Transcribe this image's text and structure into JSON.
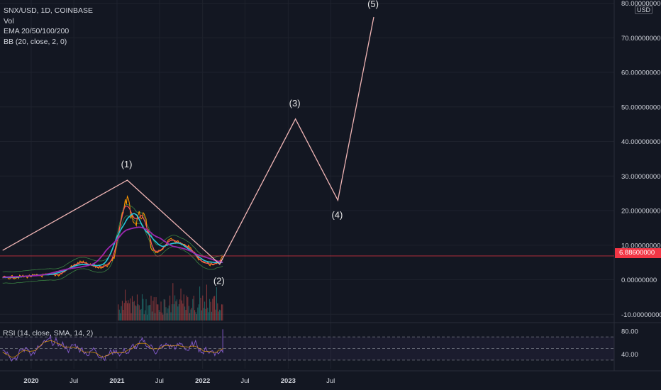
{
  "legend": {
    "symbol": "SNX/USD, 1D, COINBASE",
    "vol": "Vol",
    "ema": "EMA 20/50/100/200",
    "bb": "BB (20, close, 2, 0)"
  },
  "rsi_legend": "RSI (14, close, SMA, 14, 2)",
  "currency_badge": "USD",
  "current_price": "6.88600000",
  "colors": {
    "background": "#131722",
    "wave_line": "#f0b5b5",
    "price_line": "#f23645",
    "ema20": "#f7525f",
    "ema50": "#ff9800",
    "ema100": "#26c6da",
    "ema200": "#9c27b0",
    "bb": "#4caf50",
    "rsi": "#7e57c2",
    "volume": "#26a69a"
  },
  "chart_data": {
    "type": "line",
    "price_axis": {
      "ticks": [
        {
          "value": 80,
          "label": "80.00000000"
        },
        {
          "value": 70,
          "label": "70.00000000"
        },
        {
          "value": 60,
          "label": "60.00000000"
        },
        {
          "value": 50,
          "label": "50.00000000"
        },
        {
          "value": 40,
          "label": "40.00000000"
        },
        {
          "value": 30,
          "label": "30.00000000"
        },
        {
          "value": 20,
          "label": "20.00000000"
        },
        {
          "value": 10,
          "label": "10.00000000"
        },
        {
          "value": 0,
          "label": "0.00000000"
        },
        {
          "value": -10,
          "label": "-10.00000000"
        }
      ],
      "range": [
        -12,
        81
      ]
    },
    "time_axis": {
      "ticks": [
        {
          "date": "2020-01-01",
          "label": "2020"
        },
        {
          "date": "2020-07-01",
          "label": "Jul"
        },
        {
          "date": "2021-01-01",
          "label": "2021"
        },
        {
          "date": "2021-07-01",
          "label": "Jul"
        },
        {
          "date": "2022-01-01",
          "label": "2022"
        },
        {
          "date": "2022-07-01",
          "label": "Jul"
        },
        {
          "date": "2023-01-01",
          "label": "2023"
        },
        {
          "date": "2023-07-01",
          "label": "Jul"
        }
      ]
    },
    "current_price": 6.886,
    "elliott_waves": [
      {
        "label": "",
        "date": "2019-09-01",
        "price": 8.5
      },
      {
        "label": "(1)",
        "date": "2021-02-14",
        "price": 28.8
      },
      {
        "label": "(2)",
        "date": "2022-03-15",
        "price": 4.5
      },
      {
        "label": "(3)",
        "date": "2023-02-01",
        "price": 46.5
      },
      {
        "label": "(4)",
        "date": "2023-08-01",
        "price": 23.0
      },
      {
        "label": "(5)",
        "date": "2024-01-01",
        "price": 76.0
      }
    ],
    "price_series": {
      "name": "",
      "points": [
        {
          "date": "2019-09-01",
          "price": 0.6
        },
        {
          "date": "2019-12-01",
          "price": 0.9
        },
        {
          "date": "2020-03-01",
          "price": 1.3
        },
        {
          "date": "2020-05-01",
          "price": 1.5
        },
        {
          "date": "2020-06-15",
          "price": 3.5
        },
        {
          "date": "2020-08-01",
          "price": 5.2
        },
        {
          "date": "2020-09-01",
          "price": 4.3
        },
        {
          "date": "2020-10-15",
          "price": 3.6
        },
        {
          "date": "2020-11-20",
          "price": 4.2
        },
        {
          "date": "2020-12-20",
          "price": 6.5
        },
        {
          "date": "2021-01-15",
          "price": 16.0
        },
        {
          "date": "2021-02-01",
          "price": 20.5
        },
        {
          "date": "2021-02-14",
          "price": 24.5
        },
        {
          "date": "2021-03-01",
          "price": 19.0
        },
        {
          "date": "2021-03-20",
          "price": 16.0
        },
        {
          "date": "2021-04-10",
          "price": 19.0
        },
        {
          "date": "2021-05-05",
          "price": 17.0
        },
        {
          "date": "2021-05-25",
          "price": 9.0
        },
        {
          "date": "2021-06-20",
          "price": 7.5
        },
        {
          "date": "2021-07-20",
          "price": 9.5
        },
        {
          "date": "2021-08-20",
          "price": 12.0
        },
        {
          "date": "2021-09-15",
          "price": 11.0
        },
        {
          "date": "2021-10-15",
          "price": 10.0
        },
        {
          "date": "2021-11-15",
          "price": 9.0
        },
        {
          "date": "2021-12-15",
          "price": 6.0
        },
        {
          "date": "2022-01-15",
          "price": 5.0
        },
        {
          "date": "2022-02-15",
          "price": 4.2
        },
        {
          "date": "2022-03-15",
          "price": 4.8
        },
        {
          "date": "2022-03-28",
          "price": 6.886
        }
      ]
    },
    "rsi": {
      "ticks": [
        {
          "value": 80,
          "label": "80.00"
        },
        {
          "value": 40,
          "label": "40.00"
        }
      ],
      "band": [
        30,
        70
      ]
    }
  }
}
